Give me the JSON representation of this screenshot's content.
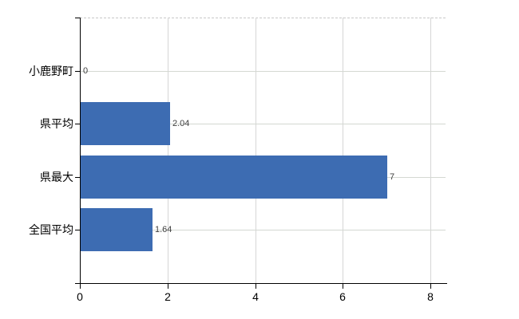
{
  "chart_data": {
    "type": "bar",
    "orientation": "horizontal",
    "title": "",
    "xlabel": "",
    "ylabel": "",
    "categories": [
      "小鹿野町",
      "県平均",
      "県最大",
      "全国平均"
    ],
    "values": [
      0,
      2.04,
      7,
      1.64
    ],
    "value_labels": [
      "0",
      "2.04",
      "7",
      "1.64"
    ],
    "x_ticks": [
      0,
      2,
      4,
      6,
      8
    ],
    "x_tick_labels": [
      "0",
      "2",
      "4",
      "6",
      "8"
    ],
    "xlim": [
      0,
      8.4
    ],
    "grid": true,
    "legend": false,
    "colors": {
      "bar": "#3d6cb2",
      "axis": "#000000",
      "gridline": "#d6d6d6",
      "category_gridline": "#d4d8d2",
      "value_label": "#404040",
      "tick_label": "#000000",
      "background": "#ffffff"
    }
  }
}
